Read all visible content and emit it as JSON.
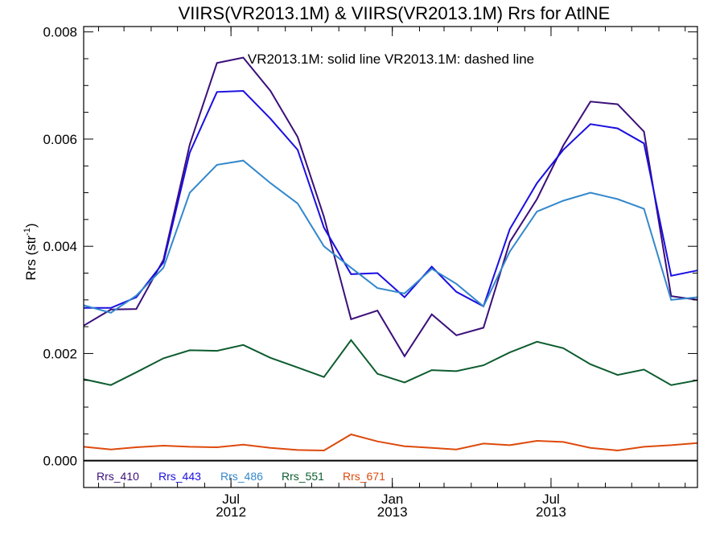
{
  "chart_data": {
    "type": "line",
    "title": "VIIRS(VR2013.1M) & VIIRS(VR2013.1M)  Rrs for AtlNE",
    "annotation": "VR2013.1M: solid line   VR2013.1M: dashed line",
    "ylabel_main": "Rrs (str",
    "ylabel_sup": "-1",
    "ylabel_tail": ")",
    "ylim": [
      -0.0005,
      0.0081
    ],
    "yticks": [
      {
        "value": 0.0,
        "label": "0.000"
      },
      {
        "value": 0.002,
        "label": "0.002"
      },
      {
        "value": 0.004,
        "label": "0.004"
      },
      {
        "value": 0.006,
        "label": "0.006"
      },
      {
        "value": 0.008,
        "label": "0.008"
      }
    ],
    "xlim": [
      "2012-01-15",
      "2013-12-15"
    ],
    "xticks": [
      {
        "date": "2012-07-01",
        "month": "Jul",
        "year": "2012"
      },
      {
        "date": "2013-01-01",
        "month": "Jan",
        "year": "2013"
      },
      {
        "date": "2013-07-01",
        "month": "Jul",
        "year": "2013"
      }
    ],
    "x": [
      "2012-01-15",
      "2012-02-15",
      "2012-03-15",
      "2012-04-15",
      "2012-05-15",
      "2012-06-15",
      "2012-07-15",
      "2012-08-15",
      "2012-09-15",
      "2012-10-15",
      "2012-11-15",
      "2012-12-15",
      "2013-01-15",
      "2013-02-15",
      "2013-03-15",
      "2013-04-15",
      "2013-05-15",
      "2013-06-15",
      "2013-07-15",
      "2013-08-15",
      "2013-09-15",
      "2013-10-15",
      "2013-11-15",
      "2013-12-15"
    ],
    "series": [
      {
        "name": "Rrs_410",
        "color": "#3b0f7a",
        "values": [
          0.00252,
          0.00282,
          0.00283,
          0.00375,
          0.0059,
          0.00742,
          0.00752,
          0.0069,
          0.00604,
          0.00455,
          0.00264,
          0.0028,
          0.00195,
          0.00273,
          0.00234,
          0.00248,
          0.00408,
          0.00488,
          0.00588,
          0.0067,
          0.00665,
          0.00614,
          0.00307,
          0.003
        ]
      },
      {
        "name": "Rrs_443",
        "color": "#1a0fe0",
        "values": [
          0.00285,
          0.00285,
          0.00305,
          0.0037,
          0.00575,
          0.00688,
          0.0069,
          0.00638,
          0.0058,
          0.00435,
          0.00348,
          0.0035,
          0.00305,
          0.00362,
          0.00315,
          0.00288,
          0.00432,
          0.00518,
          0.0058,
          0.00628,
          0.0062,
          0.00592,
          0.00345,
          0.00355
        ]
      },
      {
        "name": "Rrs_486",
        "color": "#3388cc",
        "values": [
          0.0029,
          0.00276,
          0.00308,
          0.0036,
          0.005,
          0.00552,
          0.0056,
          0.00518,
          0.0048,
          0.004,
          0.0036,
          0.00322,
          0.00312,
          0.00358,
          0.0033,
          0.00288,
          0.0039,
          0.00465,
          0.00485,
          0.005,
          0.00488,
          0.0047,
          0.003,
          0.00305
        ]
      },
      {
        "name": "Rrs_551",
        "color": "#0d5c2e",
        "values": [
          0.00152,
          0.00141,
          0.00165,
          0.00191,
          0.00206,
          0.00205,
          0.00216,
          0.00192,
          0.00174,
          0.00156,
          0.00225,
          0.00162,
          0.00146,
          0.00169,
          0.00167,
          0.00178,
          0.00202,
          0.00222,
          0.0021,
          0.0018,
          0.0016,
          0.0017,
          0.00141,
          0.0015
        ]
      },
      {
        "name": "Rrs_671",
        "color": "#dd4a0c",
        "values": [
          0.00026,
          0.00021,
          0.00025,
          0.00028,
          0.00026,
          0.00025,
          0.0003,
          0.00024,
          0.0002,
          0.00019,
          0.00049,
          0.00036,
          0.00027,
          0.00024,
          0.00021,
          0.00032,
          0.00029,
          0.00037,
          0.00035,
          0.00024,
          0.00019,
          0.00026,
          0.00029,
          0.00033
        ]
      }
    ],
    "zero_line": true,
    "grid": false,
    "legend_placement": "bottom-left inside plot"
  }
}
